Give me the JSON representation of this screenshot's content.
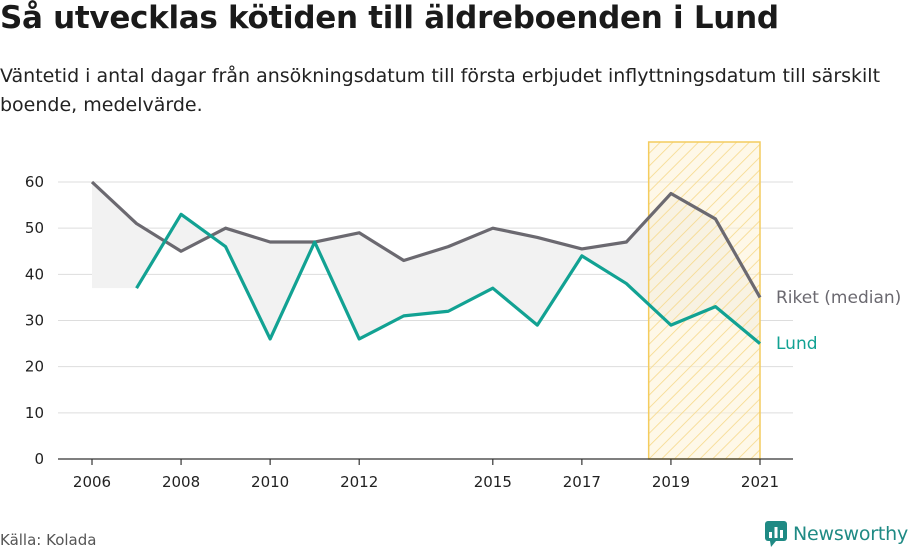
{
  "header": {
    "title": "Så utvecklas kötiden till äldreboenden i Lund",
    "subtitle": "Väntetid i antal dagar från ansökningsdatum till första erbjudet inflyttningsdatum till särskilt boende, medelvärde."
  },
  "footer": {
    "source": "Källa: Kolada",
    "brand": "Newsworthy"
  },
  "colors": {
    "riket": "#6b6970",
    "lund": "#12a293",
    "band": "#f2f2f2",
    "highlight_fill": "#fdf3d6",
    "highlight_stroke": "#f4cc5e",
    "grid": "#dddddd",
    "axis": "#333333",
    "brand": "#1f8a84"
  },
  "chart_data": {
    "type": "line",
    "ylim": [
      0,
      60
    ],
    "yticks": [
      0,
      10,
      20,
      30,
      40,
      50,
      60
    ],
    "xlim": [
      2006,
      2021
    ],
    "xticks": [
      2006,
      2008,
      2010,
      2012,
      2015,
      2017,
      2019,
      2021
    ],
    "grid": true,
    "highlight_range": [
      2018.5,
      2021
    ],
    "series": [
      {
        "name": "Riket (median)",
        "x": [
          2006,
          2007,
          2008,
          2009,
          2010,
          2011,
          2012,
          2013,
          2014,
          2015,
          2016,
          2017,
          2018,
          2019,
          2020,
          2021
        ],
        "values": [
          60,
          51,
          45,
          50,
          47,
          47,
          49,
          43,
          46,
          50,
          48,
          45.5,
          47,
          57.5,
          52,
          35
        ]
      },
      {
        "name": "Lund",
        "x": [
          2007,
          2008,
          2009,
          2010,
          2011,
          2012,
          2013,
          2014,
          2015,
          2016,
          2017,
          2018,
          2019,
          2020,
          2021
        ],
        "values": [
          37,
          53,
          46,
          26,
          47,
          26,
          31,
          32,
          37,
          29,
          44,
          38,
          29,
          33,
          25
        ]
      }
    ]
  }
}
